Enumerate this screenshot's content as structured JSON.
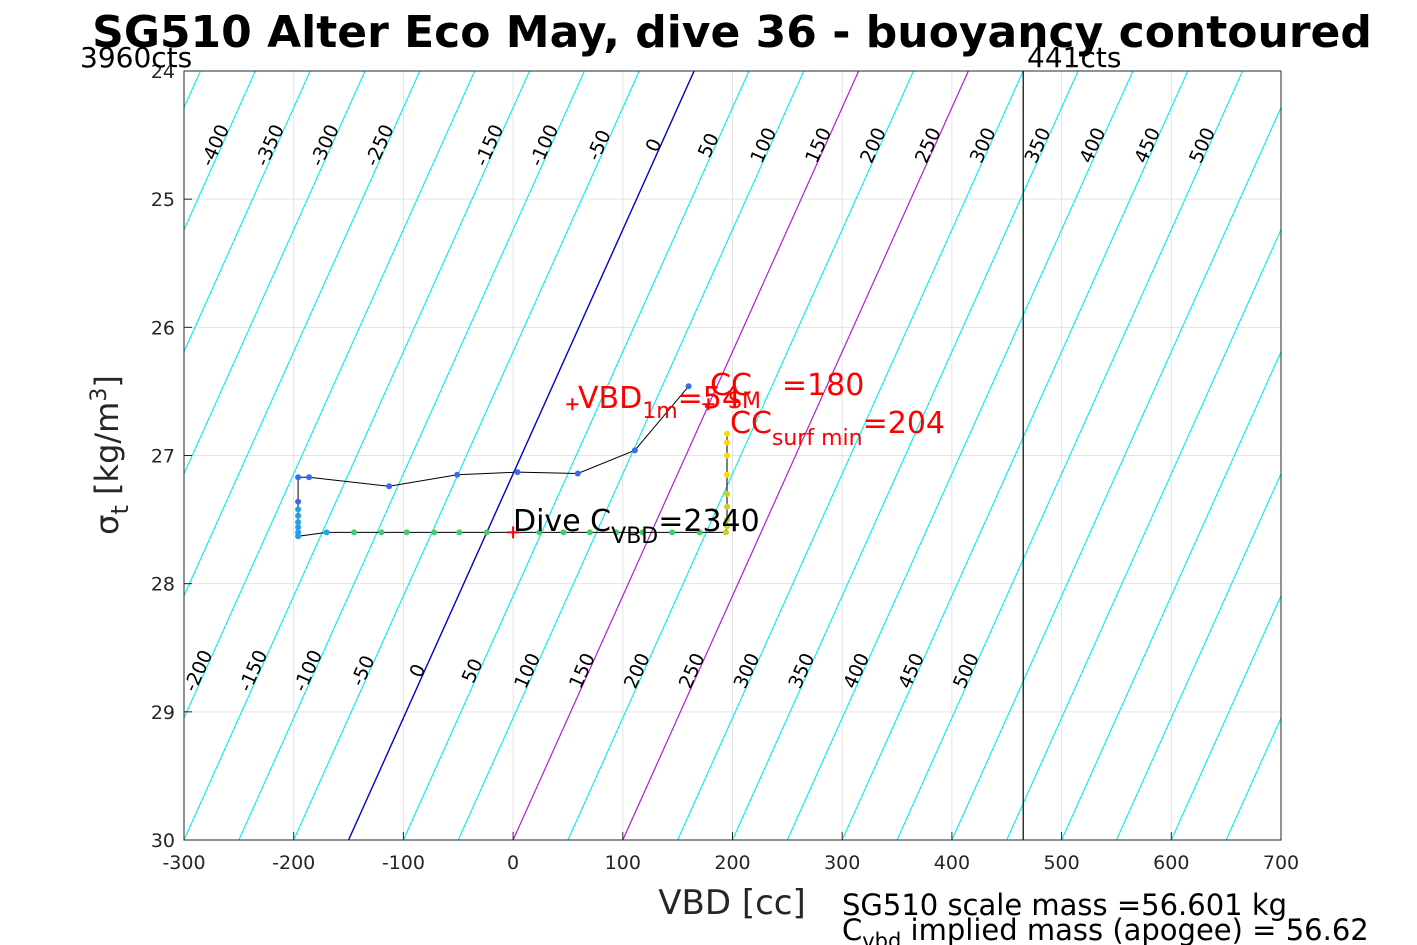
{
  "chart_data": {
    "type": "scatter",
    "title": "SG510 Alter Eco May, dive 36 - buoyancy contoured",
    "xlabel": "VBD [cc]",
    "ylabel": {
      "main": "σ",
      "sub": "t",
      "unit": " [kg/m",
      "sup": "3",
      "close": "]"
    },
    "xlim": [
      -300,
      700
    ],
    "ylim": [
      24,
      30
    ],
    "y_reversed": true,
    "grid": true,
    "xticks": [
      -300,
      -200,
      -100,
      0,
      100,
      200,
      300,
      400,
      500,
      600,
      700
    ],
    "yticks": [
      24,
      25,
      26,
      27,
      28,
      29,
      30
    ],
    "counts_min": {
      "label": "3960cts",
      "x": -300
    },
    "counts_max": {
      "label": "441cts",
      "x": 465
    },
    "contours": {
      "levels": [
        -600,
        -550,
        -500,
        -450,
        -400,
        -350,
        -300,
        -250,
        -200,
        -150,
        -100,
        -50,
        0,
        50,
        100,
        150,
        200,
        250,
        300,
        350,
        400,
        450,
        500,
        550,
        600,
        650,
        700,
        750,
        800,
        850,
        900,
        950,
        1000,
        1050,
        1100,
        1150,
        1200
      ],
      "x_at_sigma_30": {
        "level_0": -150
      },
      "x_per_sigma": -52.5,
      "x_per_level": 1.0,
      "top_labels": [
        -400,
        -350,
        -300,
        -250,
        -150,
        -100,
        -50,
        0,
        50,
        100,
        150,
        200,
        250,
        300,
        350,
        400,
        450,
        500
      ],
      "bottom_labels": [
        -200,
        -150,
        -100,
        -50,
        0,
        50,
        100,
        150,
        200,
        250,
        300,
        350,
        400,
        450,
        500
      ],
      "colors": {
        "default": "#00eeee",
        "zero": "#0000cc",
        "highlight": "#b020d0"
      },
      "highlight_levels": [
        150,
        250
      ]
    },
    "series": [
      {
        "points": [
          {
            "x": 160,
            "y": 26.46
          },
          {
            "x": 111,
            "y": 26.96
          },
          {
            "x": 59,
            "y": 27.14
          },
          {
            "x": 4,
            "y": 27.13
          },
          {
            "x": -51,
            "y": 27.15
          },
          {
            "x": -113,
            "y": 27.24
          },
          {
            "x": -186,
            "y": 27.17
          },
          {
            "x": -196,
            "y": 27.17
          },
          {
            "x": -196,
            "y": 27.36
          },
          {
            "x": -196,
            "y": 27.42
          },
          {
            "x": -196,
            "y": 27.47
          },
          {
            "x": -196,
            "y": 27.52
          },
          {
            "x": -196,
            "y": 27.56
          },
          {
            "x": -196,
            "y": 27.6
          },
          {
            "x": -196,
            "y": 27.63
          },
          {
            "x": -170,
            "y": 27.6
          },
          {
            "x": -145,
            "y": 27.6
          },
          {
            "x": -120,
            "y": 27.6
          },
          {
            "x": -97,
            "y": 27.6
          },
          {
            "x": -72,
            "y": 27.6
          },
          {
            "x": -49,
            "y": 27.6
          },
          {
            "x": -24,
            "y": 27.6
          },
          {
            "x": 24,
            "y": 27.6
          },
          {
            "x": 46,
            "y": 27.6
          },
          {
            "x": 70,
            "y": 27.6
          },
          {
            "x": 94,
            "y": 27.6
          },
          {
            "x": 118,
            "y": 27.6
          },
          {
            "x": 145,
            "y": 27.6
          },
          {
            "x": 170,
            "y": 27.6
          },
          {
            "x": 194,
            "y": 27.6
          },
          {
            "x": 195,
            "y": 27.55
          },
          {
            "x": 195,
            "y": 27.5
          },
          {
            "x": 195,
            "y": 27.4
          },
          {
            "x": 195,
            "y": 27.3
          },
          {
            "x": 195,
            "y": 27.15
          },
          {
            "x": 195,
            "y": 27.0
          },
          {
            "x": 195,
            "y": 26.9
          },
          {
            "x": 195,
            "y": 26.83
          }
        ]
      }
    ],
    "markers": [
      {
        "label": "VBD",
        "sub": "1m",
        "value": "=54",
        "x": 54,
        "y": 26.6
      },
      {
        "label": "VBD",
        "sub": "SM",
        "value": "",
        "x": 178,
        "y": 26.6
      },
      {
        "label": "Dive C",
        "sub": "VBD",
        "value": "=2340",
        "x": 0,
        "y": 27.6
      }
    ],
    "annotations": {
      "cc": {
        "label": "CC",
        "sub": "",
        "value": "=180"
      },
      "cc_surf": {
        "label": "CC",
        "sub": "surf min",
        "value": "=204"
      },
      "dive_cvbd": {
        "label": "Dive C",
        "sub": "VBD",
        "value": "=2340"
      },
      "vbd_1m": {
        "label": "VBD",
        "sub": "1m",
        "value": "=54"
      },
      "vbd_sm": {
        "label": "",
        "sub": "SM",
        "value": ""
      }
    },
    "footer": {
      "scale_mass": "SG510 scale mass =56.601 kg",
      "implied_prefix": "C",
      "implied_sub": "vbd",
      "implied_rest": " implied mass (apogee) = 56.62"
    }
  }
}
